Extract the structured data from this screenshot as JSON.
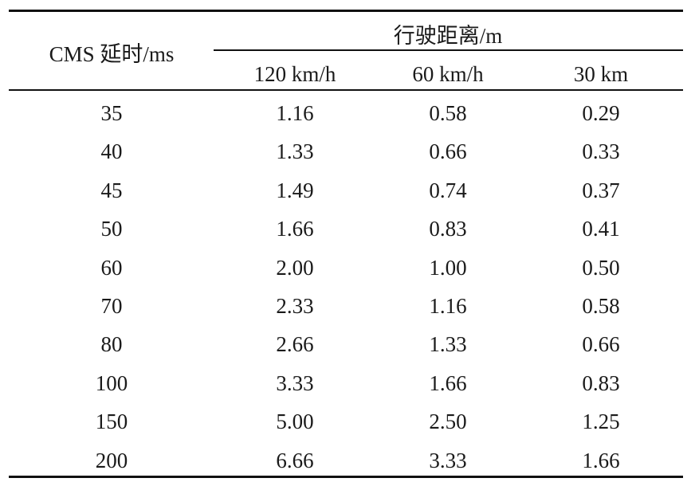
{
  "table": {
    "row_header": "CMS 延时/ms",
    "group_header": "行驶距离/m",
    "columns": [
      "120 km/h",
      "60 km/h",
      "30 km"
    ],
    "rows": [
      {
        "delay": "35",
        "values": [
          "1.16",
          "0.58",
          "0.29"
        ]
      },
      {
        "delay": "40",
        "values": [
          "1.33",
          "0.66",
          "0.33"
        ]
      },
      {
        "delay": "45",
        "values": [
          "1.49",
          "0.74",
          "0.37"
        ]
      },
      {
        "delay": "50",
        "values": [
          "1.66",
          "0.83",
          "0.41"
        ]
      },
      {
        "delay": "60",
        "values": [
          "2.00",
          "1.00",
          "0.50"
        ]
      },
      {
        "delay": "70",
        "values": [
          "2.33",
          "1.16",
          "0.58"
        ]
      },
      {
        "delay": "80",
        "values": [
          "2.66",
          "1.33",
          "0.66"
        ]
      },
      {
        "delay": "100",
        "values": [
          "3.33",
          "1.66",
          "0.83"
        ]
      },
      {
        "delay": "150",
        "values": [
          "5.00",
          "2.50",
          "1.25"
        ]
      },
      {
        "delay": "200",
        "values": [
          "6.66",
          "3.33",
          "1.66"
        ]
      }
    ]
  }
}
